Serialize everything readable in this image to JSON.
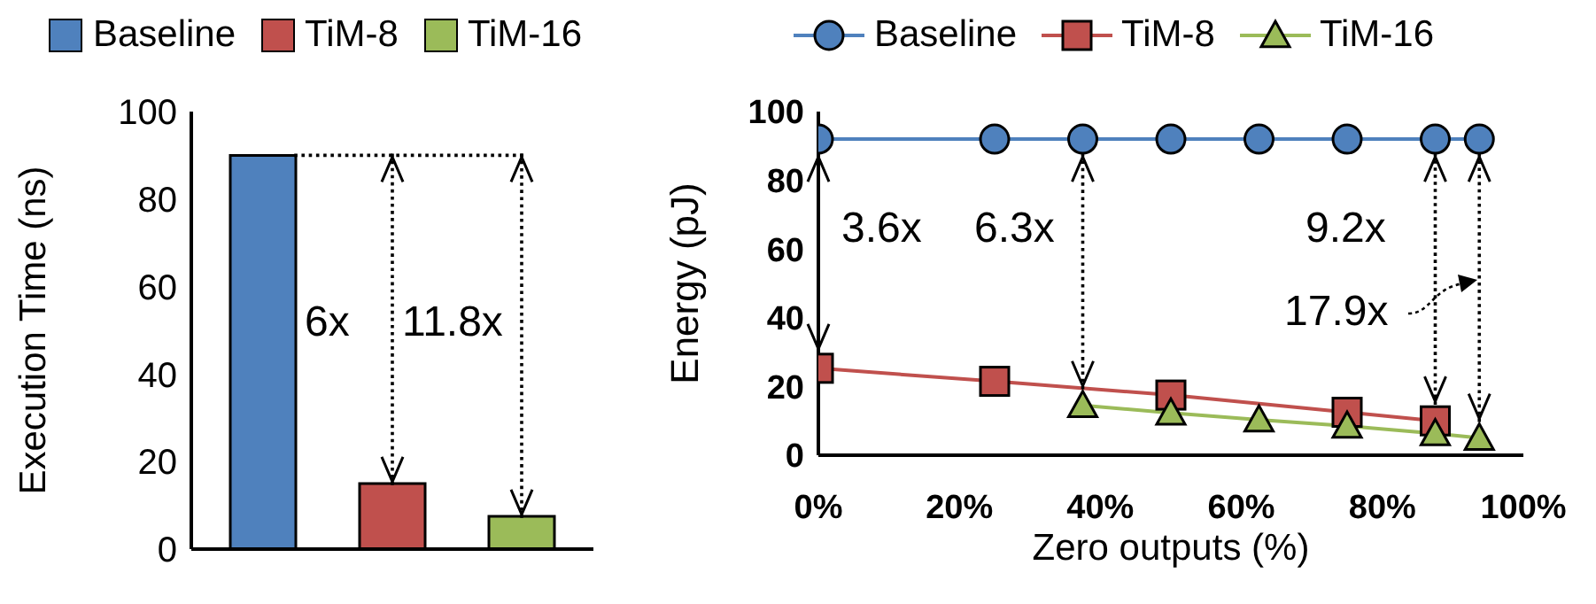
{
  "chart_data": [
    {
      "type": "bar",
      "categories": [
        null
      ],
      "ylabel": "Execution Time (ns)",
      "ylim": [
        0,
        100
      ],
      "yticks": [
        0,
        20,
        40,
        60,
        80,
        100
      ],
      "legend": "top",
      "grid": false,
      "annotations": [
        "6x",
        "11.8x"
      ],
      "series": [
        {
          "name": "Baseline",
          "color": "#4f81bd",
          "values": [
            90
          ]
        },
        {
          "name": "TiM-8",
          "color": "#c0504d",
          "values": [
            15
          ]
        },
        {
          "name": "TiM-16",
          "color": "#9bbb59",
          "values": [
            7.5
          ]
        }
      ]
    },
    {
      "type": "line",
      "xlabel": "Zero outputs (%)",
      "ylabel": "Energy (pJ)",
      "xlim": [
        0,
        100
      ],
      "xticks": [
        {
          "value": 0,
          "label": "0%"
        },
        {
          "value": 20,
          "label": "20%"
        },
        {
          "value": 40,
          "label": "40%"
        },
        {
          "value": 60,
          "label": "60%"
        },
        {
          "value": 80,
          "label": "80%"
        },
        {
          "value": 100,
          "label": "100%"
        }
      ],
      "ylim": [
        0,
        100
      ],
      "yticks": [
        0,
        20,
        40,
        60,
        80,
        100
      ],
      "legend": "top",
      "grid": false,
      "annotations": [
        "3.6x",
        "6.3x",
        "9.2x",
        "17.9x"
      ],
      "series": [
        {
          "name": "Baseline",
          "color": "#4f81bd",
          "marker": "circle",
          "x": [
            0,
            25,
            37.5,
            50,
            62.5,
            75,
            87.5,
            93.75
          ],
          "values": [
            92,
            92,
            92,
            92,
            92,
            92,
            92,
            92
          ]
        },
        {
          "name": "TiM-8",
          "color": "#c0504d",
          "marker": "square",
          "x": [
            0,
            25,
            50,
            75,
            87.5
          ],
          "values": [
            25.3,
            21.5,
            17.5,
            12.5,
            10
          ]
        },
        {
          "name": "TiM-16",
          "color": "#9bbb59",
          "marker": "triangle",
          "x": [
            37.5,
            50,
            62.5,
            75,
            87.5,
            93.75
          ],
          "values": [
            14.5,
            12.3,
            10.3,
            8.5,
            6.3,
            5
          ]
        }
      ]
    }
  ]
}
